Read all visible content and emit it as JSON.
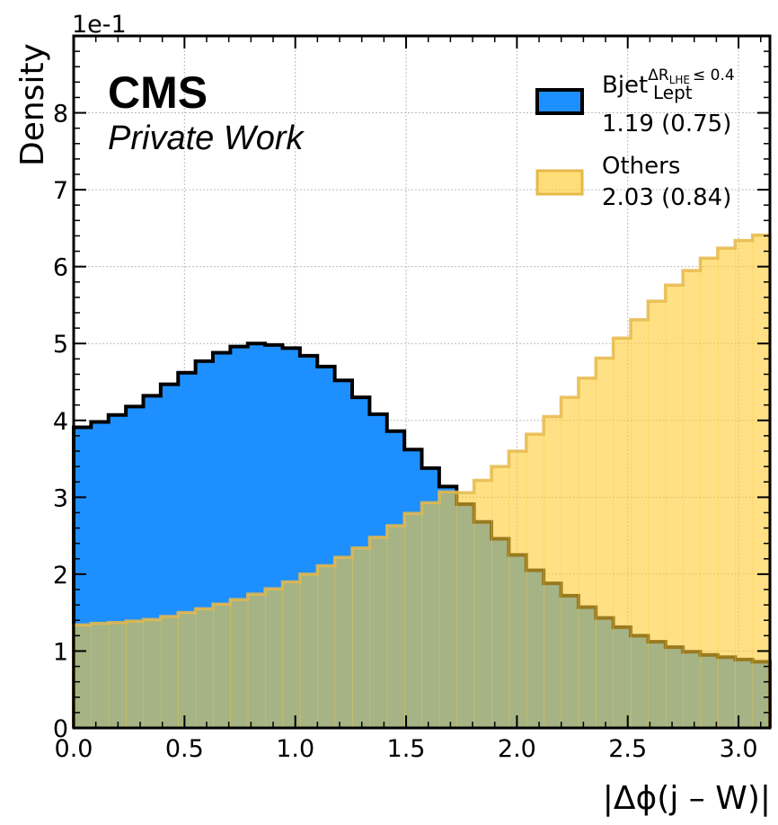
{
  "chart_data": {
    "type": "histogram",
    "x_edges_start": 0.0,
    "x_edges_end": 3.14159,
    "n_bins": 40,
    "xlim": [
      0.0,
      3.14159
    ],
    "ylim": [
      0,
      0.9
    ],
    "xlabel": "|Δϕ(j – W)|",
    "ylabel": "Density",
    "y_scale_label": "1e-1",
    "x_ticks": [
      "0.0",
      "0.5",
      "1.0",
      "1.5",
      "2.0",
      "2.5",
      "3.0"
    ],
    "x_tick_values": [
      0.0,
      0.5,
      1.0,
      1.5,
      2.0,
      2.5,
      3.0
    ],
    "y_ticks": [
      "0",
      "1",
      "2",
      "3",
      "4",
      "5",
      "6",
      "7",
      "8"
    ],
    "y_tick_values": [
      0,
      0.1,
      0.2,
      0.3,
      0.4,
      0.5,
      0.6,
      0.7,
      0.8
    ],
    "grid": true,
    "legend_position": "top-right",
    "series": [
      {
        "name": "Bjet",
        "legend_main": "Bjet",
        "legend_sup": "ΔR",
        "legend_sup_sub": "LHE",
        "legend_sup_tail": "≤ 0.4",
        "legend_sub": "Lept",
        "legend_stats": "1.19 (0.75)",
        "color": "#1e8fff",
        "edge_color": "#000000",
        "values": [
          0.391,
          0.398,
          0.407,
          0.418,
          0.432,
          0.447,
          0.462,
          0.477,
          0.488,
          0.496,
          0.5,
          0.498,
          0.494,
          0.484,
          0.47,
          0.452,
          0.43,
          0.408,
          0.386,
          0.362,
          0.338,
          0.314,
          0.291,
          0.268,
          0.246,
          0.225,
          0.205,
          0.188,
          0.172,
          0.157,
          0.143,
          0.131,
          0.12,
          0.112,
          0.105,
          0.099,
          0.095,
          0.092,
          0.089,
          0.086
        ]
      },
      {
        "name": "Others",
        "legend_main": "Others",
        "legend_stats": "2.03 (0.84)",
        "color": "#ffcc33",
        "edge_color": "#e6b84a",
        "values": [
          0.134,
          0.136,
          0.137,
          0.139,
          0.141,
          0.145,
          0.15,
          0.155,
          0.161,
          0.167,
          0.174,
          0.181,
          0.19,
          0.2,
          0.211,
          0.222,
          0.234,
          0.248,
          0.263,
          0.279,
          0.293,
          0.307,
          0.306,
          0.322,
          0.34,
          0.36,
          0.382,
          0.405,
          0.43,
          0.455,
          0.481,
          0.507,
          0.531,
          0.555,
          0.576,
          0.595,
          0.611,
          0.624,
          0.634,
          0.641
        ]
      }
    ]
  },
  "labels": {
    "cms": "CMS",
    "private_work": "Private Work"
  }
}
